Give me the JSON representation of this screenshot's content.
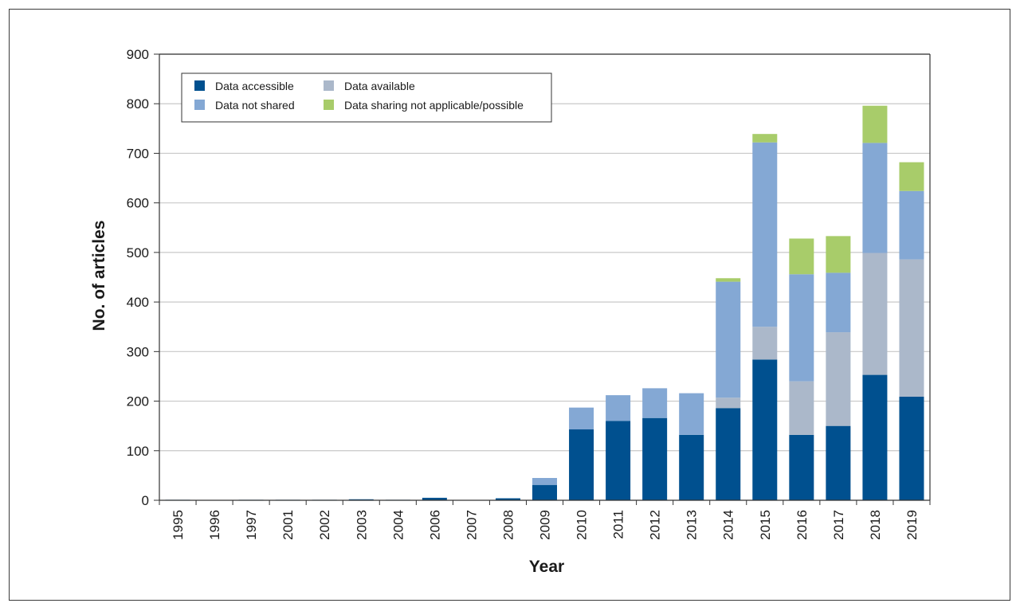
{
  "chart_data": {
    "type": "bar",
    "stacked": true,
    "title": "",
    "xlabel": "Year",
    "ylabel": "No. of articles",
    "ylim": [
      0,
      900
    ],
    "yticks": [
      0,
      100,
      200,
      300,
      400,
      500,
      600,
      700,
      800,
      900
    ],
    "grid": true,
    "legend_position": "top-left",
    "categories": [
      "1995",
      "1996",
      "1997",
      "2001",
      "2002",
      "2003",
      "2004",
      "2006",
      "2007",
      "2008",
      "2009",
      "2010",
      "2011",
      "2012",
      "2013",
      "2014",
      "2015",
      "2016",
      "2017",
      "2018",
      "2019"
    ],
    "series": [
      {
        "name": "Data accessible",
        "color": "#00508f",
        "values": [
          1,
          0,
          1,
          1,
          1,
          2,
          1,
          5,
          0,
          4,
          31,
          143,
          160,
          166,
          132,
          186,
          284,
          132,
          150,
          253,
          209
        ]
      },
      {
        "name": "Data available",
        "color": "#abb8ca",
        "values": [
          0,
          0,
          0,
          0,
          0,
          0,
          0,
          0,
          0,
          0,
          0,
          0,
          0,
          0,
          0,
          21,
          66,
          108,
          189,
          246,
          277
        ]
      },
      {
        "name": "Data not shared",
        "color": "#84a8d4",
        "values": [
          0,
          0,
          0,
          0,
          0,
          0,
          0,
          0,
          0,
          0,
          14,
          44,
          52,
          60,
          84,
          234,
          372,
          216,
          120,
          222,
          138
        ]
      },
      {
        "name": "Data sharing not applicable/possible",
        "color": "#a8cc6a",
        "values": [
          0,
          0,
          0,
          0,
          0,
          0,
          0,
          0,
          0,
          0,
          0,
          0,
          0,
          0,
          0,
          7,
          17,
          72,
          74,
          75,
          58
        ]
      }
    ],
    "legend_layout": [
      [
        "Data accessible",
        "Data available"
      ],
      [
        "Data not shared",
        "Data sharing not applicable/possible"
      ]
    ]
  }
}
